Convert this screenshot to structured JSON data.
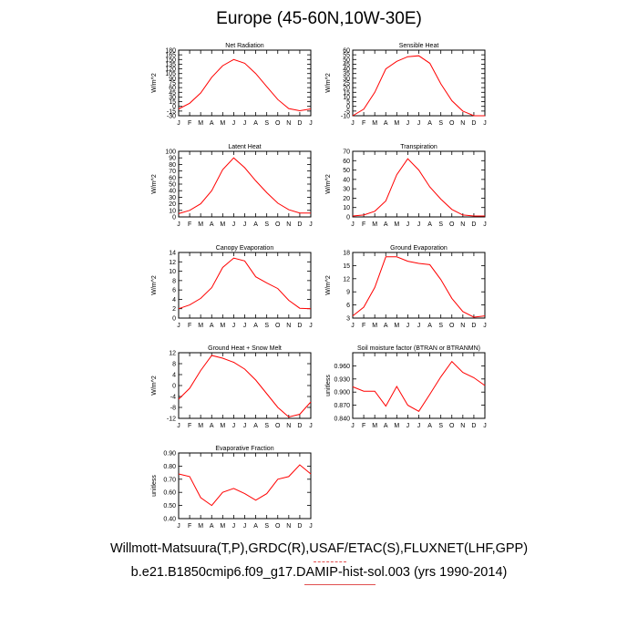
{
  "title": "Europe (45-60N,10W-30E)",
  "footer": {
    "line1": "Willmott-Matsuura(T,P),GRDC(R),USAF/ETAC(S),FLUXNET(LHF,GPP)",
    "line2": "b.e21.B1850cmip6.f09_g17.DAMIP-hist-sol.003 (yrs 1990-2014)"
  },
  "chart_data": [
    {
      "type": "line",
      "title": "Net Radiation",
      "ylabel": "W/m^2",
      "x": [
        "J",
        "F",
        "M",
        "A",
        "M",
        "J",
        "J",
        "A",
        "S",
        "O",
        "N",
        "D",
        "J"
      ],
      "ylim": [
        -30,
        180
      ],
      "yticks": [
        "-30",
        "-15",
        "0",
        "15",
        "30",
        "45",
        "60",
        "75",
        "90",
        "105",
        "120",
        "135",
        "150",
        "165",
        "180"
      ],
      "series": [
        {
          "color": "#ff0000",
          "values": [
            -8,
            10,
            43,
            93,
            130,
            150,
            138,
            105,
            63,
            22,
            -7,
            -14,
            -8
          ]
        }
      ]
    },
    {
      "type": "line",
      "title": "Sensible Heat",
      "ylabel": "W/m^2",
      "x": [
        "J",
        "F",
        "M",
        "A",
        "M",
        "J",
        "J",
        "A",
        "S",
        "O",
        "N",
        "D",
        "J"
      ],
      "ylim": [
        -10,
        60
      ],
      "yticks": [
        "-10",
        "-5",
        "0",
        "5",
        "10",
        "15",
        "20",
        "25",
        "30",
        "35",
        "40",
        "45",
        "50",
        "55",
        "60"
      ],
      "series": [
        {
          "color": "#ff0000",
          "values": [
            -10,
            -3,
            15,
            40,
            48,
            53,
            54,
            46,
            24,
            6,
            -5,
            -10,
            -10
          ]
        }
      ]
    },
    {
      "type": "line",
      "title": "Latent Heat",
      "ylabel": "W/m^2",
      "x": [
        "J",
        "F",
        "M",
        "A",
        "M",
        "J",
        "J",
        "A",
        "S",
        "O",
        "N",
        "D",
        "J"
      ],
      "ylim": [
        0,
        100
      ],
      "yticks": [
        "0",
        "10",
        "20",
        "30",
        "40",
        "50",
        "60",
        "70",
        "80",
        "90",
        "100"
      ],
      "series": [
        {
          "color": "#ff0000",
          "values": [
            5,
            10,
            20,
            40,
            72,
            90,
            75,
            55,
            37,
            21,
            11,
            6,
            6
          ]
        }
      ]
    },
    {
      "type": "line",
      "title": "Transpiration",
      "ylabel": "W/m^2",
      "x": [
        "J",
        "F",
        "M",
        "A",
        "M",
        "J",
        "J",
        "A",
        "S",
        "O",
        "N",
        "D",
        "J"
      ],
      "ylim": [
        0,
        70
      ],
      "yticks": [
        "0",
        "10",
        "20",
        "30",
        "40",
        "50",
        "60",
        "70"
      ],
      "series": [
        {
          "color": "#ff0000",
          "values": [
            1,
            2,
            6,
            17,
            45,
            62,
            50,
            32,
            19,
            8,
            2,
            1,
            1
          ]
        }
      ]
    },
    {
      "type": "line",
      "title": "Canopy Evaporation",
      "ylabel": "W/m^2",
      "x": [
        "J",
        "F",
        "M",
        "A",
        "M",
        "J",
        "J",
        "A",
        "S",
        "O",
        "N",
        "D",
        "J"
      ],
      "ylim": [
        0,
        14
      ],
      "yticks": [
        "0",
        "2",
        "4",
        "6",
        "8",
        "10",
        "12",
        "14"
      ],
      "series": [
        {
          "color": "#ff0000",
          "values": [
            2,
            2.8,
            4.2,
            6.5,
            10.8,
            12.8,
            12.2,
            8.8,
            7.5,
            6.3,
            3.8,
            2.1,
            2.0
          ]
        }
      ]
    },
    {
      "type": "line",
      "title": "Ground Evaporation",
      "ylabel": "W/m^2",
      "x": [
        "J",
        "F",
        "M",
        "A",
        "M",
        "J",
        "J",
        "A",
        "S",
        "O",
        "N",
        "D",
        "J"
      ],
      "ylim": [
        3,
        18
      ],
      "yticks": [
        "3",
        "6",
        "9",
        "12",
        "15",
        "18"
      ],
      "series": [
        {
          "color": "#ff0000",
          "values": [
            3.5,
            5.5,
            10,
            17,
            17,
            16,
            15.5,
            15.2,
            11.8,
            7.5,
            4.5,
            3.2,
            3.5
          ]
        }
      ]
    },
    {
      "type": "line",
      "title": "Ground Heat + Snow Melt",
      "ylabel": "W/m^2",
      "x": [
        "J",
        "F",
        "M",
        "A",
        "M",
        "J",
        "J",
        "A",
        "S",
        "O",
        "N",
        "D",
        "J"
      ],
      "ylim": [
        -12,
        12
      ],
      "yticks": [
        "-12",
        "-8",
        "-4",
        "0",
        "4",
        "8",
        "12"
      ],
      "series": [
        {
          "color": "#ff0000",
          "values": [
            -5,
            -1,
            5.5,
            11,
            10,
            8.5,
            6,
            2,
            -3,
            -8,
            -11.5,
            -10.5,
            -6
          ]
        }
      ]
    },
    {
      "type": "line",
      "title": "Soil moisture factor (BTRAN or BTRANMN)",
      "ylabel": "unitless",
      "x": [
        "J",
        "F",
        "M",
        "A",
        "M",
        "J",
        "J",
        "A",
        "S",
        "O",
        "N",
        "D",
        "J"
      ],
      "ylim": [
        0.84,
        0.99
      ],
      "yticks": [
        "0.840",
        "0.870",
        "0.900",
        "0.930",
        "0.960"
      ],
      "series": [
        {
          "color": "#ff0000",
          "values": [
            0.912,
            0.902,
            0.902,
            0.868,
            0.913,
            0.87,
            0.856,
            0.895,
            0.935,
            0.97,
            0.945,
            0.933,
            0.915
          ]
        }
      ]
    },
    {
      "type": "line",
      "title": "Evaporative Fraction",
      "ylabel": "unitless",
      "x": [
        "J",
        "F",
        "M",
        "A",
        "M",
        "J",
        "J",
        "A",
        "S",
        "O",
        "N",
        "D",
        "J"
      ],
      "ylim": [
        0.4,
        0.9
      ],
      "yticks": [
        "0.40",
        "0.50",
        "0.60",
        "0.70",
        "0.80",
        "0.90"
      ],
      "series": [
        {
          "color": "#ff0000",
          "values": [
            0.74,
            0.72,
            0.56,
            0.5,
            0.6,
            0.63,
            0.59,
            0.54,
            0.59,
            0.7,
            0.72,
            0.81,
            0.74
          ]
        }
      ]
    }
  ]
}
